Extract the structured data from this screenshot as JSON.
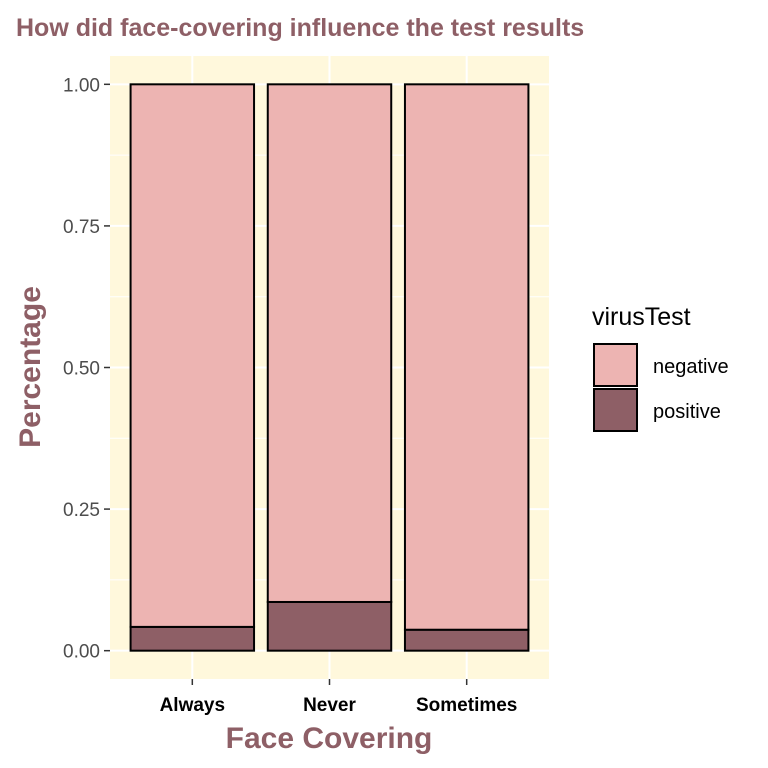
{
  "chart_data": {
    "type": "bar",
    "stacked": true,
    "title": "How did face-covering influence the test results",
    "xlabel": "Face Covering",
    "ylabel": "Percentage",
    "categories": [
      "Always",
      "Never",
      "Sometimes"
    ],
    "series": [
      {
        "name": "negative",
        "values": [
          0.958,
          0.914,
          0.963
        ]
      },
      {
        "name": "positive",
        "values": [
          0.042,
          0.086,
          0.037
        ]
      }
    ],
    "ylim": [
      -0.05,
      1.05
    ],
    "yticks": [
      0.0,
      0.25,
      0.5,
      0.75,
      1.0
    ],
    "ytick_labels": [
      "0.00",
      "0.25",
      "0.50",
      "0.75",
      "1.00"
    ],
    "grid": true,
    "legend": {
      "title": "virusTest",
      "position": "right"
    }
  },
  "colors": {
    "title": "#8e5f66",
    "panel_background": "#fff8dc",
    "grid": "#ffffff",
    "negative": "#edb4b2",
    "positive": "#8e5f66",
    "bar_outline": "#000000"
  }
}
